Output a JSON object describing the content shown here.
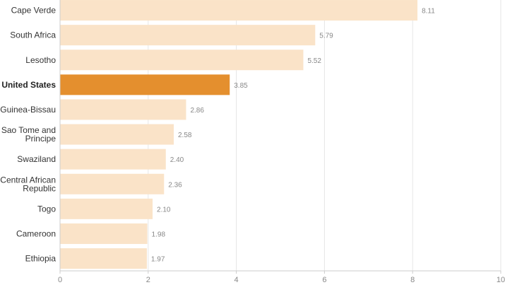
{
  "chart_data": {
    "type": "bar",
    "orientation": "horizontal",
    "categories": [
      [
        "Cape Verde"
      ],
      [
        "South Africa"
      ],
      [
        "Lesotho"
      ],
      [
        "United States"
      ],
      [
        "Guinea-Bissau"
      ],
      [
        "Sao Tome and",
        "Principe"
      ],
      [
        "Swaziland"
      ],
      [
        "Central African",
        "Republic"
      ],
      [
        "Togo"
      ],
      [
        "Cameroon"
      ],
      [
        "Ethiopia"
      ]
    ],
    "values": [
      8.11,
      5.79,
      5.52,
      3.85,
      2.86,
      2.58,
      2.4,
      2.36,
      2.1,
      1.98,
      1.97
    ],
    "value_labels": [
      "8.11",
      "5.79",
      "5.52",
      "3.85",
      "2.86",
      "2.58",
      "2.40",
      "2.36",
      "2.10",
      "1.98",
      "1.97"
    ],
    "highlight": "United States",
    "xlim": [
      0,
      10
    ],
    "xticks": [
      0,
      2,
      4,
      6,
      8,
      10
    ],
    "grid": true,
    "colors": {
      "bar": "#fae3c8",
      "highlight": "#e48f2e"
    }
  }
}
